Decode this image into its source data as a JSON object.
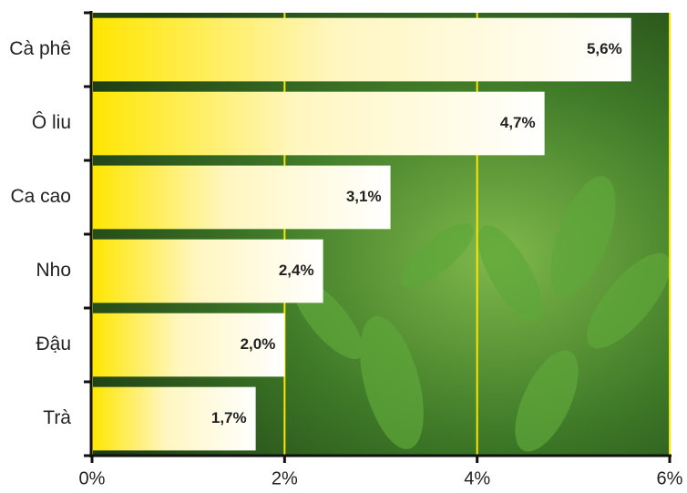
{
  "chart_data": {
    "type": "hbar",
    "categories": [
      "Cà phê",
      "Ô liu",
      "Ca cao",
      "Nho",
      "Đậu",
      "Trà"
    ],
    "values": [
      5.6,
      4.7,
      3.1,
      2.4,
      2.0,
      1.7
    ],
    "value_labels": [
      "5,6%",
      "4,7%",
      "3,1%",
      "2,4%",
      "2,0%",
      "1,7%"
    ],
    "color": "#ffe600",
    "xlim": [
      0,
      6
    ],
    "xticks": [
      {
        "value": 0,
        "label": "0%"
      },
      {
        "value": 2,
        "label": "2%"
      },
      {
        "value": 4,
        "label": "4%"
      },
      {
        "value": 6,
        "label": "6%"
      }
    ],
    "grid": true
  }
}
